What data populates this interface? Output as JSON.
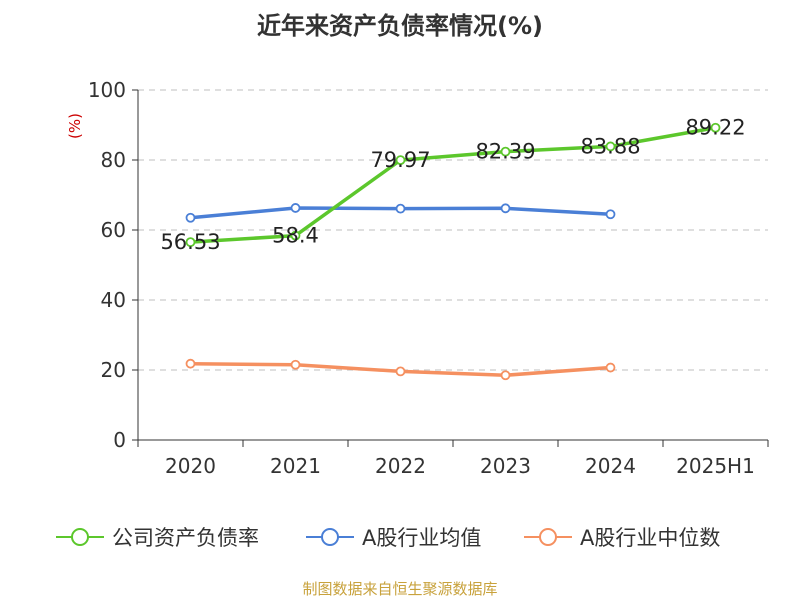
{
  "title": "近年来资产负债率情况(%)",
  "source": "制图数据来自恒生聚源数据库",
  "chart_data": {
    "type": "line",
    "categories": [
      "2020",
      "2021",
      "2022",
      "2023",
      "2024",
      "2025H1"
    ],
    "ylabel": "(%)",
    "ylim": [
      0,
      100
    ],
    "yticks": [
      0,
      20,
      40,
      60,
      80,
      100
    ],
    "grid": "dashed horizontal",
    "legend_position": "bottom",
    "series": [
      {
        "name": "公司资产负债率",
        "color": "#5cc72c",
        "values": [
          56.53,
          58.4,
          79.97,
          82.39,
          83.88,
          89.22
        ],
        "labels": [
          "56.53",
          "58.4",
          "79.97",
          "82.39",
          "83.88",
          "89.22"
        ]
      },
      {
        "name": "A股行业均值",
        "color": "#4a7fd6",
        "values": [
          63.5,
          66.3,
          66.1,
          66.2,
          64.5,
          null
        ]
      },
      {
        "name": "A股行业中位数",
        "color": "#f59060",
        "values": [
          21.8,
          21.5,
          19.6,
          18.5,
          20.7,
          null
        ]
      }
    ]
  }
}
